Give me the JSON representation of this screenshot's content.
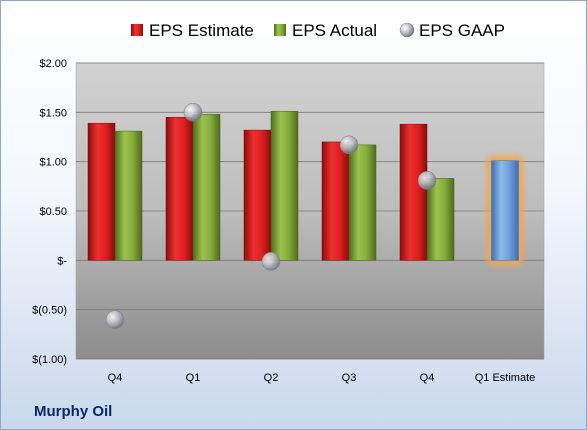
{
  "company": "Murphy Oil",
  "colors": {
    "estimate": "#e02020",
    "actual": "#86ac3c",
    "gaap": "#b8bcc4",
    "future_estimate": "#6f9fd8",
    "future_glow": "#f5a54a"
  },
  "chart_data": {
    "type": "bar",
    "categories": [
      "Q4",
      "Q1",
      "Q2",
      "Q3",
      "Q4",
      "Q1 Estimate"
    ],
    "ylim": [
      -1.0,
      2.0
    ],
    "yticks": [
      2.0,
      1.5,
      1.0,
      0.5,
      0.0,
      -0.5,
      -1.0
    ],
    "ytick_labels": [
      "$2.00",
      "$1.50",
      "$1.00",
      "$0.50",
      "$-",
      "$(0.50)",
      "$(1.00)"
    ],
    "legend_position": "top",
    "series": [
      {
        "name": "EPS Estimate",
        "type": "bar",
        "values": [
          1.39,
          1.45,
          1.32,
          1.2,
          1.38,
          1.01
        ]
      },
      {
        "name": "EPS Actual",
        "type": "bar",
        "values": [
          1.31,
          1.48,
          1.51,
          1.17,
          0.83,
          null
        ]
      },
      {
        "name": "EPS GAAP",
        "type": "scatter",
        "values": [
          -0.6,
          1.5,
          -0.01,
          1.17,
          0.81,
          null
        ]
      }
    ]
  }
}
